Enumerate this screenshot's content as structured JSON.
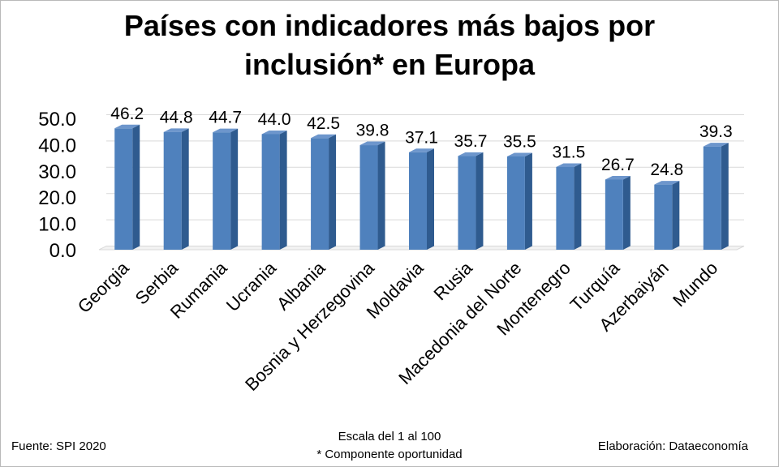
{
  "chart_data": {
    "type": "bar",
    "title_lines": [
      "Países con indicadores más bajos por",
      "inclusión* en Europa"
    ],
    "categories": [
      "Georgia",
      "Serbia",
      "Rumania",
      "Ucrania",
      "Albania",
      "Bosnia y Herzegovina",
      "Moldavia",
      "Rusia",
      "Macedonia del Norte",
      "Montenegro",
      "Turquía",
      "Azerbaiyán",
      "Mundo"
    ],
    "values": [
      46.2,
      44.8,
      44.7,
      44.0,
      42.5,
      39.8,
      37.1,
      35.7,
      35.5,
      31.5,
      26.7,
      24.8,
      39.3
    ],
    "value_labels": [
      "46.2",
      "44.8",
      "44.7",
      "44.0",
      "42.5",
      "39.8",
      "37.1",
      "35.7",
      "35.5",
      "31.5",
      "26.7",
      "24.8",
      "39.3"
    ],
    "y_ticks": [
      "0.0",
      "10.0",
      "20.0",
      "30.0",
      "40.0",
      "50.0"
    ],
    "ylim": [
      0,
      50
    ],
    "grid": true,
    "bar_color": "#4f81bd"
  },
  "footer": {
    "source": "Fuente: SPI 2020",
    "scale_line1": "Escala del 1 al 100",
    "scale_line2": "* Componente oportunidad",
    "credit": "Elaboración: Dataeconomía"
  }
}
